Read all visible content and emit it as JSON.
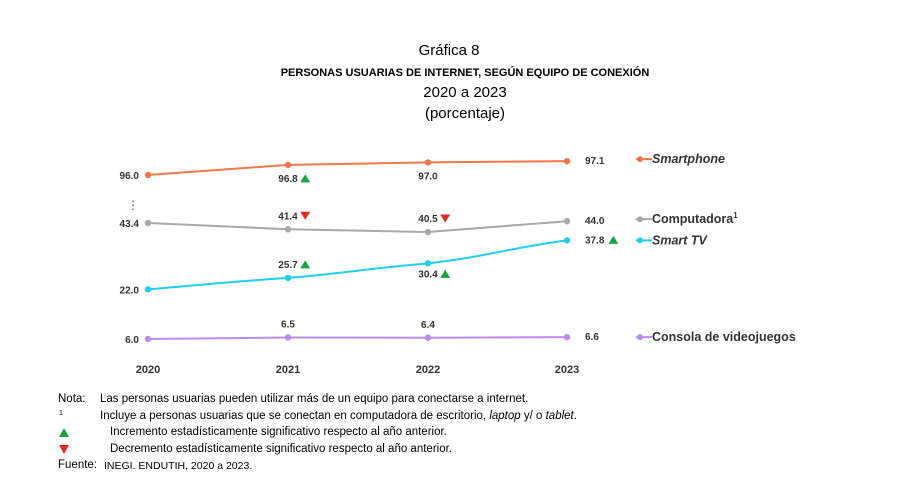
{
  "header": {
    "title": "Gráfica 8",
    "subtitle": "PERSONAS USUARIAS DE INTERNET, SEGÚN EQUIPO DE CONEXIÓN",
    "years": "2020 a 2023",
    "unit": "(porcentaje)"
  },
  "chart_data": {
    "type": "line",
    "title": "PERSONAS USUARIAS DE INTERNET, SEGÚN EQUIPO DE CONEXIÓN",
    "xlabel": "",
    "ylabel": "porcentaje",
    "axis_break": "⋮",
    "categories": [
      "2020",
      "2021",
      "2022",
      "2023"
    ],
    "legend_position": "right",
    "series": [
      {
        "name": "Smartphone",
        "name_italic": true,
        "name_sup": "",
        "color": "#f07848",
        "values": [
          96.0,
          96.8,
          97.0,
          97.1
        ],
        "labels": [
          "96.0",
          "96.8",
          "97.0",
          "97.1"
        ],
        "markers": [
          "",
          "up",
          "",
          ""
        ]
      },
      {
        "name": "Computadora",
        "name_italic": false,
        "name_sup": "1",
        "color": "#a8a8a8",
        "values": [
          43.4,
          41.4,
          40.5,
          44.0
        ],
        "labels": [
          "43.4",
          "41.4",
          "40.5",
          "44.0"
        ],
        "markers": [
          "",
          "down",
          "down",
          ""
        ]
      },
      {
        "name": "Smart TV",
        "name_italic": true,
        "name_sup": "",
        "color": "#21cdf0",
        "values": [
          22.0,
          25.7,
          30.4,
          37.8
        ],
        "labels": [
          "22.0",
          "25.7",
          "30.4",
          "37.8"
        ],
        "markers": [
          "",
          "up",
          "up",
          "up"
        ]
      },
      {
        "name": "Consola de videojuegos",
        "name_italic": false,
        "name_sup": "",
        "color": "#b88cf0",
        "values": [
          6.0,
          6.5,
          6.4,
          6.6
        ],
        "labels": [
          "6.0",
          "6.5",
          "6.4",
          "6.6"
        ],
        "markers": [
          "",
          "",
          "",
          ""
        ]
      }
    ],
    "colors": {
      "increase": "#1aa245",
      "decrease": "#e32b21"
    }
  },
  "notes": {
    "note_label": "Nota:",
    "note_text": "Las personas usuarias pueden utilizar más de un equipo para conectarse a internet.",
    "footnote_mark": "1",
    "footnote_text_a": "Incluye a personas usuarias que se conectan en computadora de escritorio, ",
    "footnote_laptop": "laptop",
    "footnote_text_b": " y/ o ",
    "footnote_tablet": "tablet",
    "footnote_text_c": ".",
    "increase_text": "Incremento estadísticamente significativo respecto al año anterior.",
    "decrease_text": "Decremento estadísticamente significativo respecto al año anterior.",
    "source_label": "Fuente:",
    "source_text": "INEGI. ENDUTIH, 2020 a 2023."
  }
}
